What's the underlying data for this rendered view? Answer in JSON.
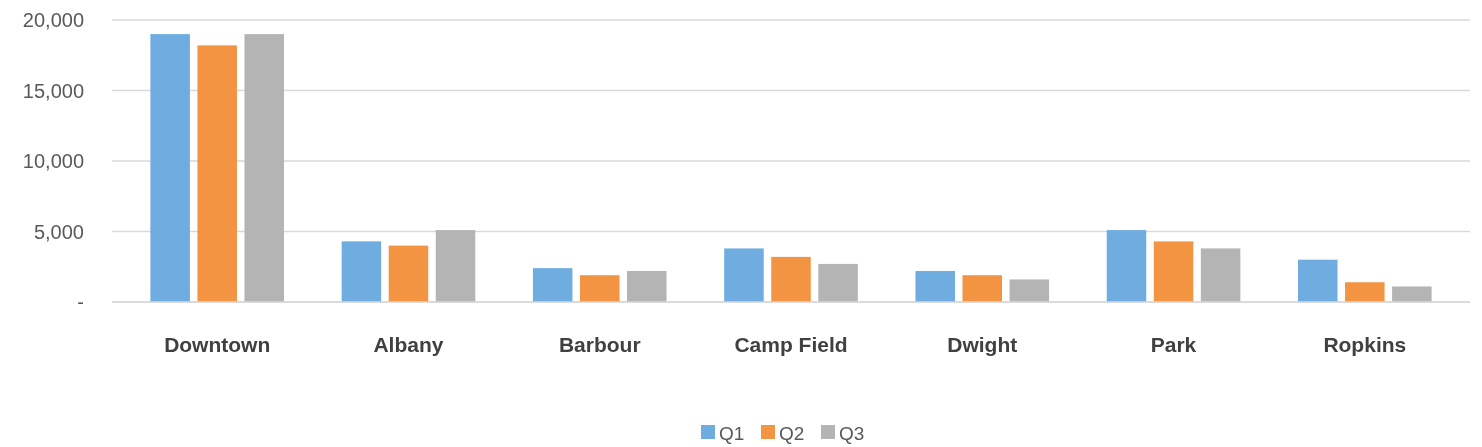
{
  "chart_data": {
    "type": "bar",
    "categories": [
      "Downtown",
      "Albany",
      "Barbour",
      "Camp Field",
      "Dwight",
      "Park",
      "Ropkins"
    ],
    "series": [
      {
        "name": "Q1",
        "color": "#6fade1",
        "values": [
          19000,
          4300,
          2400,
          3800,
          2200,
          5100,
          3000
        ]
      },
      {
        "name": "Q2",
        "color": "#f39443",
        "values": [
          18200,
          4000,
          1900,
          3200,
          1900,
          4300,
          1400
        ]
      },
      {
        "name": "Q3",
        "color": "#b4b4b4",
        "values": [
          19000,
          5100,
          2200,
          2700,
          1600,
          3800,
          1100
        ]
      }
    ],
    "ylim": [
      0,
      20000
    ],
    "yticks": [
      {
        "value": 0,
        "label": "-"
      },
      {
        "value": 5000,
        "label": "5,000"
      },
      {
        "value": 10000,
        "label": "10,000"
      },
      {
        "value": 15000,
        "label": "15,000"
      },
      {
        "value": 20000,
        "label": "20,000"
      }
    ],
    "grid": "y",
    "legend": "bottom"
  }
}
